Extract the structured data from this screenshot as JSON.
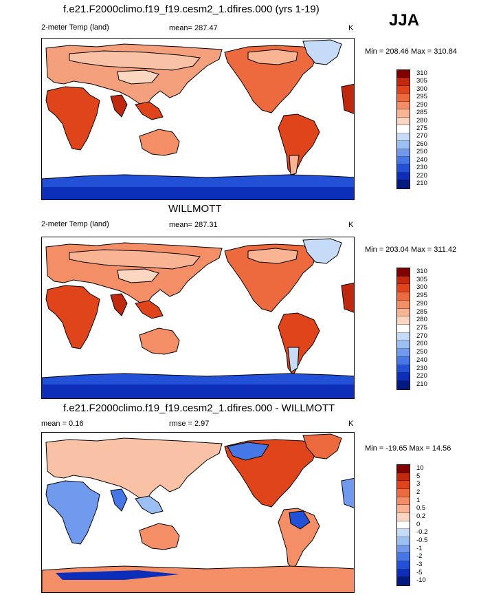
{
  "season": "JJA",
  "panels": [
    {
      "title": "f.e21.F2000climo.f19_f19.cesm2_1.dfires.000 (yrs 1-19)",
      "field": "2-meter Temp (land)",
      "stat_text": "mean= 287.47",
      "units": "K",
      "minmax": "Min = 208.46 Max = 310.84",
      "levels": [
        "310",
        "305",
        "300",
        "295",
        "290",
        "285",
        "280",
        "275",
        "270",
        "260",
        "250",
        "240",
        "230",
        "220",
        "210"
      ],
      "colors": [
        "#800000",
        "#c0290e",
        "#e0441a",
        "#ec6a3e",
        "#f48e66",
        "#f9b494",
        "#fbd7c1",
        "#ffffff",
        "#c6dbf7",
        "#9bbff3",
        "#6f9aee",
        "#4677e6",
        "#2251d8",
        "#0d2eb8",
        "#001a80"
      ]
    },
    {
      "title": "WILLMOTT",
      "field": "2-meter Temp (land)",
      "stat_text": "mean= 287.31",
      "units": "K",
      "minmax": "Min = 203.04 Max = 311.42",
      "levels": [
        "310",
        "305",
        "300",
        "295",
        "290",
        "285",
        "280",
        "275",
        "270",
        "260",
        "250",
        "240",
        "230",
        "220",
        "210"
      ],
      "colors": [
        "#800000",
        "#c0290e",
        "#e0441a",
        "#ec6a3e",
        "#f48e66",
        "#f9b494",
        "#fbd7c1",
        "#ffffff",
        "#c6dbf7",
        "#9bbff3",
        "#6f9aee",
        "#4677e6",
        "#2251d8",
        "#0d2eb8",
        "#001a80"
      ]
    },
    {
      "title": "f.e21.F2000climo.f19_f19.cesm2_1.dfires.000 - WILLMOTT",
      "field": "mean =   0.16",
      "stat_text": "rmse =   2.97",
      "units": "K",
      "minmax": "Min = -19.65 Max =  14.56",
      "levels": [
        "10",
        "5",
        "3",
        "2",
        "1",
        "0.5",
        "0.2",
        "0",
        "-0.2",
        "-0.5",
        "-1",
        "-2",
        "-3",
        "-5",
        "-10"
      ],
      "colors": [
        "#800000",
        "#c0290e",
        "#e0441a",
        "#ec6a3e",
        "#f48e66",
        "#f9b494",
        "#fbd7c1",
        "#ffffff",
        "#c6dbf7",
        "#9bbff3",
        "#6f9aee",
        "#4677e6",
        "#2251d8",
        "#0d2eb8",
        "#001a80"
      ]
    }
  ]
}
